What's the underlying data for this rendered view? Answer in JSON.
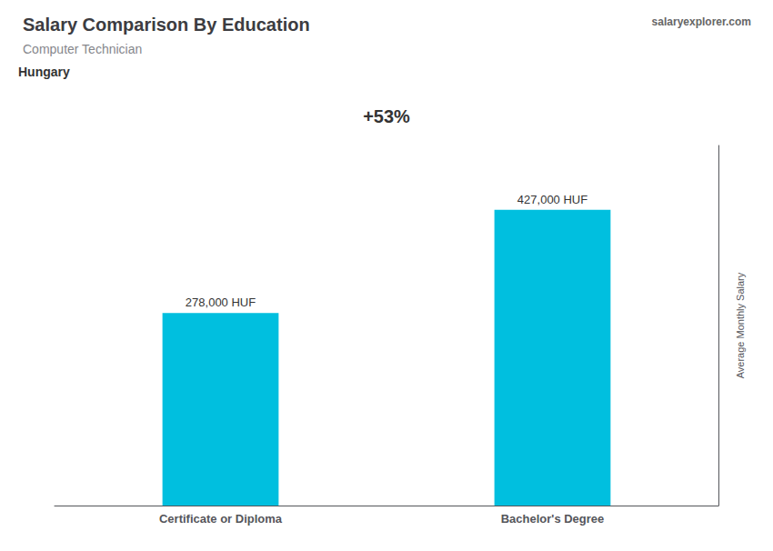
{
  "chart_data": {
    "type": "bar",
    "title": "Salary Comparison By Education",
    "subtitle": "Computer Technician",
    "annotations": [
      "Hungary",
      "+53%",
      "salaryexplorer.com"
    ],
    "ylabel": "Average Monthly Salary",
    "categories": [
      "Certificate or Diploma",
      "Bachelor's Degree"
    ],
    "values": [
      278000,
      427000
    ],
    "value_labels": [
      "278,000 HUF",
      "427,000 HUF"
    ],
    "data_labels": true,
    "color": "#00BFDF",
    "ylim": [
      0,
      520000
    ],
    "tick_labels": "x",
    "grid": false
  }
}
